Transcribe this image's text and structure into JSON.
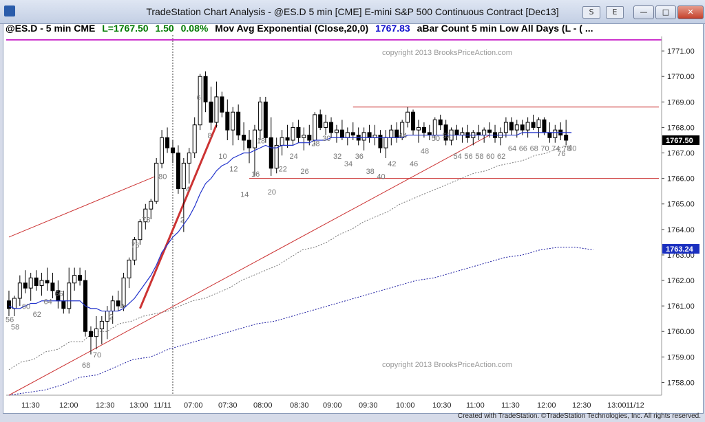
{
  "window": {
    "title": "TradeStation Chart Analysis - @ES.D 5 min [CME] E-mini S&P 500 Continuous Contract [Dec13]",
    "toolbar_buttons": [
      "S",
      "E"
    ]
  },
  "header": {
    "symbol": "@ES.D - 5 min  CME",
    "last": "L=1767.50",
    "change": "1.50",
    "pct": "0.08%",
    "indicator": "Mov Avg Exponential (Close,20,0)",
    "indicator_value": "1767.83",
    "extra": "aBar Count 5 min Low All Days (L - ( ..."
  },
  "colors": {
    "header_green": "#007a00",
    "indicator_blue": "#1010cc",
    "magenta": "#cc33cc",
    "ema": "#2233cc",
    "trend": "#cc3333",
    "dotted_blue": "#1a1aa0",
    "dotted_gray": "#777777"
  },
  "footer": "Created with TradeStation. ©TradeStation Technologies, Inc. All rights reserved.",
  "chart_data": {
    "type": "candlestick",
    "watermark": "copyright 2013 BrooksPriceAction.com",
    "y_ticks": [
      "1771.00",
      "1770.00",
      "1769.00",
      "1768.00",
      "1767.00",
      "1766.00",
      "1765.00",
      "1764.00",
      "1763.00",
      "1762.00",
      "1761.00",
      "1760.00",
      "1759.00",
      "1758.00"
    ],
    "ylim": [
      1757.5,
      1771.3
    ],
    "x_ticks": [
      "11:30",
      "12:00",
      "12:30",
      "13:00",
      "11/11",
      "07:00",
      "07:30",
      "08:00",
      "08:30",
      "09:00",
      "09:30",
      "10:00",
      "10:30",
      "11:00",
      "11:30",
      "12:00",
      "12:30",
      "13:00",
      "11/12"
    ],
    "price_labels": [
      {
        "value": "1767.50",
        "price": 1767.5,
        "style": "black"
      },
      {
        "value": "1763.24",
        "price": 1763.24,
        "style": "blue"
      }
    ],
    "bars": [
      [
        1761.2,
        1761.6,
        1760.6,
        1760.9
      ],
      [
        1760.9,
        1761.4,
        1760.6,
        1761.3
      ],
      [
        1761.3,
        1762.2,
        1761.0,
        1761.9
      ],
      [
        1761.9,
        1762.4,
        1761.5,
        1761.7
      ],
      [
        1761.7,
        1762.3,
        1761.2,
        1762.1
      ],
      [
        1762.1,
        1762.4,
        1761.6,
        1761.8
      ],
      [
        1761.8,
        1762.3,
        1761.4,
        1762.0
      ],
      [
        1762.0,
        1762.5,
        1761.6,
        1761.9
      ],
      [
        1761.9,
        1762.3,
        1761.3,
        1761.6
      ],
      [
        1761.6,
        1762.0,
        1760.9,
        1761.2
      ],
      [
        1761.2,
        1761.6,
        1760.7,
        1760.9
      ],
      [
        1760.9,
        1762.5,
        1760.7,
        1761.9
      ],
      [
        1761.9,
        1762.5,
        1761.6,
        1762.2
      ],
      [
        1762.2,
        1762.5,
        1761.8,
        1762.0
      ],
      [
        1762.0,
        1762.4,
        1759.8,
        1760.0
      ],
      [
        1760.0,
        1760.2,
        1759.1,
        1759.8
      ],
      [
        1759.8,
        1760.6,
        1759.3,
        1760.1
      ],
      [
        1760.1,
        1760.6,
        1759.5,
        1760.4
      ],
      [
        1760.4,
        1761.0,
        1759.7,
        1760.8
      ],
      [
        1760.8,
        1761.4,
        1760.3,
        1761.2
      ],
      [
        1761.2,
        1761.6,
        1760.8,
        1761.0
      ],
      [
        1761.0,
        1762.3,
        1760.8,
        1762.1
      ],
      [
        1762.1,
        1762.9,
        1761.7,
        1762.8
      ],
      [
        1762.8,
        1763.7,
        1762.6,
        1763.6
      ],
      [
        1763.6,
        1764.4,
        1763.4,
        1764.3
      ],
      [
        1764.3,
        1765.0,
        1764.0,
        1764.8
      ],
      [
        1764.8,
        1765.2,
        1764.4,
        1765.1
      ],
      [
        1765.1,
        1766.8,
        1765.0,
        1766.6
      ],
      [
        1766.6,
        1767.9,
        1766.4,
        1767.6
      ],
      [
        1767.6,
        1768.0,
        1767.0,
        1767.2
      ],
      [
        1767.2,
        1767.5,
        1766.6,
        1767.0
      ],
      [
        1767.0,
        1767.3,
        1765.4,
        1765.6
      ],
      [
        1765.6,
        1766.8,
        1763.9,
        1766.6
      ],
      [
        1766.6,
        1767.2,
        1765.8,
        1767.0
      ],
      [
        1767.0,
        1768.4,
        1766.8,
        1768.1
      ],
      [
        1768.1,
        1770.1,
        1767.9,
        1770.0
      ],
      [
        1770.0,
        1770.2,
        1768.6,
        1769.0
      ],
      [
        1769.0,
        1769.6,
        1767.9,
        1768.2
      ],
      [
        1768.2,
        1769.8,
        1768.0,
        1769.2
      ],
      [
        1769.2,
        1769.4,
        1768.4,
        1768.6
      ],
      [
        1768.6,
        1769.1,
        1767.5,
        1767.9
      ],
      [
        1767.9,
        1768.8,
        1767.3,
        1768.6
      ],
      [
        1768.6,
        1768.9,
        1767.5,
        1767.7
      ],
      [
        1767.7,
        1768.2,
        1767.1,
        1767.5
      ],
      [
        1767.5,
        1767.9,
        1766.6,
        1767.2
      ],
      [
        1767.2,
        1768.1,
        1766.1,
        1767.9
      ],
      [
        1767.9,
        1769.2,
        1767.5,
        1769.0
      ],
      [
        1769.0,
        1769.2,
        1767.4,
        1767.6
      ],
      [
        1767.6,
        1768.4,
        1766.1,
        1766.4
      ],
      [
        1766.4,
        1767.6,
        1766.2,
        1767.3
      ],
      [
        1767.3,
        1767.9,
        1766.9,
        1767.6
      ],
      [
        1767.6,
        1768.1,
        1767.2,
        1767.5
      ],
      [
        1767.5,
        1768.2,
        1767.3,
        1768.0
      ],
      [
        1768.0,
        1768.3,
        1767.4,
        1767.6
      ],
      [
        1767.6,
        1768.0,
        1767.1,
        1767.7
      ],
      [
        1767.7,
        1768.1,
        1767.3,
        1767.5
      ],
      [
        1767.5,
        1768.6,
        1767.3,
        1768.5
      ],
      [
        1768.5,
        1768.7,
        1767.9,
        1768.0
      ],
      [
        1768.0,
        1768.5,
        1767.7,
        1768.2
      ],
      [
        1768.2,
        1768.4,
        1767.6,
        1767.8
      ],
      [
        1767.8,
        1768.1,
        1767.4,
        1767.9
      ],
      [
        1767.9,
        1768.3,
        1767.5,
        1767.6
      ],
      [
        1767.6,
        1768.0,
        1767.3,
        1767.8
      ],
      [
        1767.8,
        1768.2,
        1767.5,
        1767.7
      ],
      [
        1767.7,
        1768.0,
        1767.3,
        1767.5
      ],
      [
        1767.5,
        1768.0,
        1767.1,
        1767.8
      ],
      [
        1767.8,
        1768.1,
        1767.4,
        1767.6
      ],
      [
        1767.6,
        1768.1,
        1767.3,
        1767.7
      ],
      [
        1767.7,
        1767.9,
        1767.0,
        1767.2
      ],
      [
        1767.2,
        1767.9,
        1766.8,
        1767.6
      ],
      [
        1767.6,
        1768.1,
        1767.3,
        1767.9
      ],
      [
        1767.9,
        1768.2,
        1767.4,
        1767.6
      ],
      [
        1767.6,
        1768.3,
        1767.5,
        1768.2
      ],
      [
        1768.2,
        1768.8,
        1768.0,
        1768.6
      ],
      [
        1768.6,
        1768.7,
        1767.7,
        1767.9
      ],
      [
        1767.9,
        1768.3,
        1767.4,
        1768.0
      ],
      [
        1768.0,
        1768.2,
        1767.6,
        1767.8
      ],
      [
        1767.8,
        1768.1,
        1767.5,
        1767.7
      ],
      [
        1767.7,
        1768.4,
        1767.5,
        1768.3
      ],
      [
        1768.3,
        1768.5,
        1767.9,
        1768.1
      ],
      [
        1768.1,
        1768.3,
        1767.3,
        1767.5
      ],
      [
        1767.5,
        1768.0,
        1767.3,
        1767.9
      ],
      [
        1767.9,
        1768.1,
        1767.5,
        1767.7
      ],
      [
        1767.7,
        1768.0,
        1767.4,
        1767.8
      ],
      [
        1767.8,
        1768.1,
        1767.4,
        1767.6
      ],
      [
        1767.6,
        1767.9,
        1767.3,
        1767.8
      ],
      [
        1767.8,
        1768.1,
        1767.5,
        1767.7
      ],
      [
        1767.7,
        1768.0,
        1767.4,
        1767.9
      ],
      [
        1767.9,
        1768.2,
        1767.6,
        1767.8
      ],
      [
        1767.8,
        1768.1,
        1767.4,
        1767.6
      ],
      [
        1767.6,
        1768.0,
        1767.3,
        1767.8
      ],
      [
        1767.8,
        1768.4,
        1767.6,
        1768.2
      ],
      [
        1768.2,
        1768.4,
        1767.7,
        1767.9
      ],
      [
        1767.9,
        1768.3,
        1767.6,
        1768.1
      ],
      [
        1768.1,
        1768.3,
        1767.7,
        1767.9
      ],
      [
        1767.9,
        1768.4,
        1767.6,
        1768.2
      ],
      [
        1768.2,
        1768.5,
        1767.9,
        1768.0
      ],
      [
        1768.0,
        1768.4,
        1767.6,
        1768.3
      ],
      [
        1768.3,
        1768.4,
        1767.7,
        1767.8
      ],
      [
        1767.8,
        1768.2,
        1767.4,
        1767.6
      ],
      [
        1767.6,
        1768.1,
        1767.4,
        1767.9
      ],
      [
        1767.9,
        1768.2,
        1767.5,
        1767.7
      ],
      [
        1767.7,
        1768.3,
        1767.3,
        1767.5
      ]
    ],
    "bar_labels": [
      {
        "text": "56",
        "bar": 0,
        "price": 1760.7
      },
      {
        "text": "58",
        "bar": 1,
        "price": 1760.4
      },
      {
        "text": "60",
        "bar": 3,
        "price": 1761.2
      },
      {
        "text": "62",
        "bar": 5,
        "price": 1760.9
      },
      {
        "text": "64",
        "bar": 7,
        "price": 1761.4
      },
      {
        "text": "66",
        "bar": 9,
        "price": 1761.7
      },
      {
        "text": "68",
        "bar": 14,
        "price": 1758.9
      },
      {
        "text": "70",
        "bar": 16,
        "price": 1759.3
      },
      {
        "text": "2",
        "bar": 19,
        "price": 1760.8
      },
      {
        "text": "4",
        "bar": 21,
        "price": 1761.2
      },
      {
        "text": "76",
        "bar": 23,
        "price": 1763.6
      },
      {
        "text": "78",
        "bar": 25,
        "price": 1764.6
      },
      {
        "text": "80",
        "bar": 28,
        "price": 1766.3
      },
      {
        "text": "2",
        "bar": 32,
        "price": 1764.6
      },
      {
        "text": "4",
        "bar": 33,
        "price": 1765.8
      },
      {
        "text": "6",
        "bar": 35,
        "price": 1769.4
      },
      {
        "text": "8",
        "bar": 37,
        "price": 1767.9
      },
      {
        "text": "10",
        "bar": 39,
        "price": 1767.1
      },
      {
        "text": "12",
        "bar": 41,
        "price": 1766.6
      },
      {
        "text": "14",
        "bar": 43,
        "price": 1765.6
      },
      {
        "text": "16",
        "bar": 45,
        "price": 1766.4
      },
      {
        "text": "18",
        "bar": 46,
        "price": 1767.7
      },
      {
        "text": "20",
        "bar": 48,
        "price": 1765.7
      },
      {
        "text": "22",
        "bar": 50,
        "price": 1766.6
      },
      {
        "text": "24",
        "bar": 52,
        "price": 1767.1
      },
      {
        "text": "26",
        "bar": 54,
        "price": 1766.5
      },
      {
        "text": "28",
        "bar": 56,
        "price": 1767.6
      },
      {
        "text": "30",
        "bar": 58,
        "price": 1767.8
      },
      {
        "text": "32",
        "bar": 60,
        "price": 1767.1
      },
      {
        "text": "34",
        "bar": 62,
        "price": 1766.8
      },
      {
        "text": "36",
        "bar": 64,
        "price": 1767.1
      },
      {
        "text": "38",
        "bar": 66,
        "price": 1766.5
      },
      {
        "text": "40",
        "bar": 68,
        "price": 1766.3
      },
      {
        "text": "42",
        "bar": 70,
        "price": 1766.8
      },
      {
        "text": "44",
        "bar": 72,
        "price": 1767.9
      },
      {
        "text": "46",
        "bar": 74,
        "price": 1766.8
      },
      {
        "text": "48",
        "bar": 76,
        "price": 1767.3
      },
      {
        "text": "50",
        "bar": 78,
        "price": 1767.8
      },
      {
        "text": "52",
        "bar": 80,
        "price": 1767.9
      },
      {
        "text": "54",
        "bar": 82,
        "price": 1767.1
      },
      {
        "text": "56",
        "bar": 84,
        "price": 1767.1
      },
      {
        "text": "58",
        "bar": 86,
        "price": 1767.1
      },
      {
        "text": "60",
        "bar": 88,
        "price": 1767.1
      },
      {
        "text": "62",
        "bar": 90,
        "price": 1767.1
      },
      {
        "text": "64",
        "bar": 92,
        "price": 1767.4
      },
      {
        "text": "66",
        "bar": 94,
        "price": 1767.4
      },
      {
        "text": "68",
        "bar": 96,
        "price": 1767.4
      },
      {
        "text": "70",
        "bar": 98,
        "price": 1767.4
      },
      {
        "text": "74",
        "bar": 100,
        "price": 1767.4
      },
      {
        "text": "76",
        "bar": 101,
        "price": 1767.2
      },
      {
        "text": "78",
        "bar": 102,
        "price": 1767.4
      },
      {
        "text": "80",
        "bar": 103,
        "price": 1767.4
      }
    ],
    "ema": [
      1761.0,
      1760.9,
      1760.9,
      1761.0,
      1761.1,
      1761.1,
      1761.2,
      1761.2,
      1761.2,
      1761.2,
      1761.2,
      1761.2,
      1761.2,
      1761.2,
      1761.0,
      1760.9,
      1760.9,
      1760.8,
      1760.8,
      1760.8,
      1760.8,
      1760.9,
      1761.1,
      1761.3,
      1761.6,
      1761.9,
      1762.2,
      1762.6,
      1763.1,
      1763.4,
      1763.7,
      1763.9,
      1764.2,
      1764.5,
      1764.9,
      1765.4,
      1765.8,
      1766.0,
      1766.3,
      1766.5,
      1766.6,
      1766.8,
      1766.9,
      1767.0,
      1767.0,
      1767.1,
      1767.2,
      1767.3,
      1767.2,
      1767.2,
      1767.3,
      1767.3,
      1767.3,
      1767.4,
      1767.4,
      1767.4,
      1767.5,
      1767.5,
      1767.5,
      1767.6,
      1767.6,
      1767.6,
      1767.6,
      1767.6,
      1767.6,
      1767.6,
      1767.6,
      1767.6,
      1767.6,
      1767.6,
      1767.6,
      1767.6,
      1767.6,
      1767.7,
      1767.7,
      1767.7,
      1767.7,
      1767.7,
      1767.7,
      1767.7,
      1767.7,
      1767.7,
      1767.7,
      1767.7,
      1767.7,
      1767.7,
      1767.7,
      1767.7,
      1767.7,
      1767.7,
      1767.7,
      1767.7,
      1767.7,
      1767.7,
      1767.8,
      1767.8,
      1767.8,
      1767.8,
      1767.8,
      1767.8,
      1767.8,
      1767.8,
      1767.8,
      1767.8
    ],
    "trend_lines": [
      {
        "from": [
          0,
          1763.7
        ],
        "to": [
          27,
          1766.1
        ],
        "color": "trend",
        "width": 1
      },
      {
        "from": [
          0,
          1757.5
        ],
        "to": [
          88,
          1767.7
        ],
        "color": "trend",
        "width": 1
      },
      {
        "from": [
          24,
          1760.9
        ],
        "to": [
          38,
          1768.1
        ],
        "color": "trend",
        "width": 3
      },
      {
        "from": [
          63,
          1768.8
        ],
        "to": [
          119,
          1768.8
        ],
        "color": "trend",
        "width": 1
      },
      {
        "from": [
          44,
          1766.0
        ],
        "to": [
          119,
          1766.0
        ],
        "color": "trend",
        "width": 1
      }
    ],
    "dotted_gray": [
      1758.5,
      1758.8,
      1758.9,
      1759.2,
      1759.3,
      1759.6,
      1759.6,
      1760.0,
      1760.0,
      1760.3,
      1760.4,
      1760.6,
      1760.7,
      1760.8,
      1761.0,
      1761.2,
      1761.3,
      1761.5,
      1761.7,
      1762.0,
      1762.2,
      1762.4,
      1762.6,
      1762.9,
      1763.2,
      1763.3,
      1763.5,
      1763.8,
      1764.0,
      1764.3,
      1764.5,
      1764.7,
      1765.0,
      1765.2,
      1765.4,
      1765.6,
      1765.8,
      1766.0,
      1766.2,
      1766.3,
      1766.5,
      1766.6,
      1766.7,
      1766.9,
      1767.0,
      1767.2,
      1767.3
    ],
    "dotted_blue": [
      1757.5,
      1757.6,
      1757.7,
      1757.9,
      1758.2,
      1758.3,
      1758.6,
      1758.9,
      1759.0,
      1759.3,
      1759.5,
      1759.7,
      1759.9,
      1760.1,
      1760.3,
      1760.4,
      1760.6,
      1760.8,
      1761.0,
      1761.2,
      1761.4,
      1761.6,
      1761.8,
      1762.0,
      1762.1,
      1762.3,
      1762.5,
      1762.7,
      1762.9,
      1763.0,
      1763.2,
      1763.3,
      1763.3,
      1763.2
    ],
    "vertical_marker_bar": 30
  }
}
